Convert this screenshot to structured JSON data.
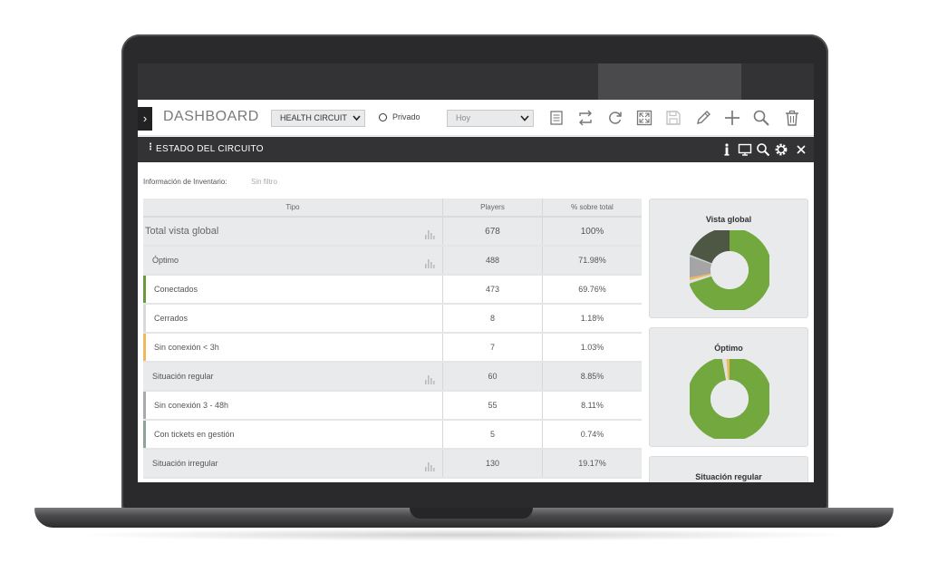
{
  "toolbar": {
    "toggle_glyph": "›",
    "title": "DASHBOARD",
    "circuit_select": "HEALTH CIRCUIT",
    "privacy_label": "Privado",
    "date_select": "Hoy",
    "icons": [
      "list-icon",
      "swap-icon",
      "refresh-icon",
      "fullscreen-icon",
      "save-icon",
      "edit-icon",
      "add-icon",
      "search-icon",
      "trash-icon"
    ]
  },
  "panel": {
    "title": "ESTADO DEL CIRCUITO",
    "menu_glyph": "⋮",
    "close_glyph": "✕",
    "icons": [
      "info-icon",
      "monitor-icon",
      "search-icon",
      "gear-icon",
      "close-icon"
    ]
  },
  "filter": {
    "label": "Información de Inventario:",
    "value": "Sin filtro"
  },
  "table": {
    "headers": [
      "Tipo",
      "Players",
      "% sobre total"
    ],
    "rows": [
      {
        "tipo": "Total vista global",
        "players": "678",
        "pct": "100%",
        "kind": "top",
        "accent": ""
      },
      {
        "tipo": "Óptimo",
        "players": "488",
        "pct": "71.98%",
        "kind": "grp",
        "accent": ""
      },
      {
        "tipo": "Conectados",
        "players": "473",
        "pct": "69.76%",
        "kind": "sub",
        "accent": "#6a9b3b"
      },
      {
        "tipo": "Cerrados",
        "players": "8",
        "pct": "1.18%",
        "kind": "sub",
        "accent": "#d9d9d9"
      },
      {
        "tipo": "Sin conexión < 3h",
        "players": "7",
        "pct": "1.03%",
        "kind": "sub",
        "accent": "#f0b85a"
      },
      {
        "tipo": "Situación regular",
        "players": "60",
        "pct": "8.85%",
        "kind": "grp",
        "accent": ""
      },
      {
        "tipo": "Sin conexión 3 - 48h",
        "players": "55",
        "pct": "8.11%",
        "kind": "sub",
        "accent": "#aaaaaa"
      },
      {
        "tipo": "Con tickets en gestión",
        "players": "5",
        "pct": "0.74%",
        "kind": "sub",
        "accent": "#8fa39a"
      },
      {
        "tipo": "Situación irregular",
        "players": "130",
        "pct": "19.17%",
        "kind": "grp",
        "accent": ""
      }
    ]
  },
  "charts": [
    {
      "title": "Vista global",
      "slices": [
        {
          "value": 69.76,
          "color": "#72a83e"
        },
        {
          "value": 1.18,
          "color": "#e0e0e0"
        },
        {
          "value": 1.03,
          "color": "#f0b85a"
        },
        {
          "value": 8.11,
          "color": "#a5a5a5"
        },
        {
          "value": 0.74,
          "color": "#c8ccc9"
        },
        {
          "value": 19.17,
          "color": "#4d5744"
        }
      ]
    },
    {
      "title": "Óptimo",
      "slices": [
        {
          "value": 473,
          "color": "#72a83e"
        },
        {
          "value": 8,
          "color": "#e0e0e0"
        },
        {
          "value": 7,
          "color": "#f0b85a"
        }
      ]
    },
    {
      "title": "Situación regular",
      "slices": []
    }
  ],
  "colors": {
    "accent_green": "#72a83e",
    "header_dark": "#333335",
    "row_gray": "#e9eaeb"
  }
}
